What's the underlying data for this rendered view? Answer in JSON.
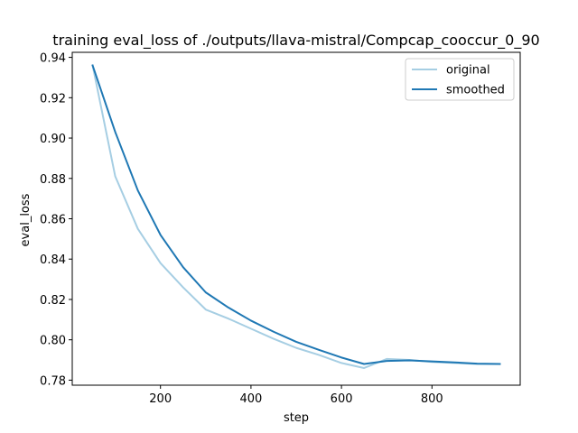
{
  "chart_data": {
    "type": "line",
    "title": "training eval_loss of ./outputs/llava-mistral/Compcap_cooccur_0_90",
    "xlabel": "step",
    "ylabel": "eval_loss",
    "xlim": [
      5,
      995
    ],
    "ylim": [
      0.7775,
      0.9425
    ],
    "xticks": [
      200,
      400,
      600,
      800
    ],
    "yticks": [
      0.78,
      0.8,
      0.82,
      0.84,
      0.86,
      0.88,
      0.9,
      0.92,
      0.94
    ],
    "grid": false,
    "legend": "top-right",
    "series": [
      {
        "name": "original",
        "color": "#a6cee3",
        "x": [
          50,
          100,
          150,
          200,
          250,
          300,
          350,
          400,
          450,
          500,
          550,
          600,
          650,
          700,
          750,
          800,
          850,
          900,
          950
        ],
        "y": [
          0.936,
          0.881,
          0.855,
          0.838,
          0.826,
          0.815,
          0.8105,
          0.8055,
          0.8005,
          0.796,
          0.7925,
          0.7885,
          0.786,
          0.7905,
          0.79,
          0.789,
          0.7885,
          0.788,
          0.788
        ]
      },
      {
        "name": "smoothed",
        "color": "#1f78b4",
        "x": [
          50,
          100,
          150,
          200,
          250,
          300,
          350,
          400,
          450,
          500,
          550,
          600,
          650,
          700,
          750,
          800,
          850,
          900,
          950
        ],
        "y": [
          0.936,
          0.903,
          0.874,
          0.852,
          0.836,
          0.8235,
          0.816,
          0.8095,
          0.804,
          0.799,
          0.795,
          0.7912,
          0.788,
          0.7895,
          0.7898,
          0.7893,
          0.7888,
          0.7882,
          0.788
        ]
      }
    ]
  }
}
